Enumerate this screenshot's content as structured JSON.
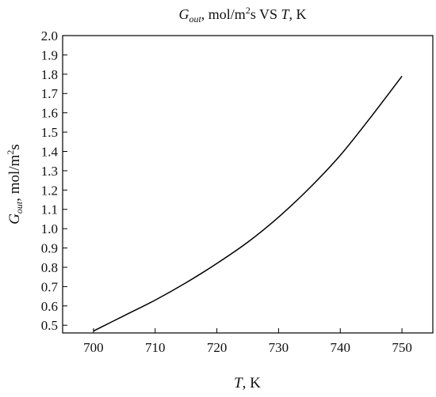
{
  "chart_data": {
    "type": "line",
    "title": {
      "symbol": "G",
      "subscript": "out",
      "mid": ", mol/m",
      "sup": "2",
      "rest": "s VS ",
      "tvar": "T",
      "tunit": ", K"
    },
    "xlabel": {
      "var": "T",
      "unit": ", K"
    },
    "ylabel": {
      "symbol": "G",
      "subscript": "out",
      "mid": ", mol/m",
      "sup": "2",
      "rest": "s"
    },
    "xlim": [
      695,
      755
    ],
    "ylim": [
      0.46,
      2.0
    ],
    "x_ticks": [
      700,
      710,
      720,
      730,
      740,
      750
    ],
    "y_ticks": [
      0.5,
      0.6,
      0.7,
      0.8,
      0.9,
      1.0,
      1.1,
      1.2,
      1.3,
      1.4,
      1.5,
      1.6,
      1.7,
      1.8,
      1.9,
      2.0
    ],
    "y_tick_labels": [
      "0.5",
      "0.6",
      "0.7",
      "0.8",
      "0.9",
      "1.0",
      "1.1",
      "1.2",
      "1.3",
      "1.4",
      "1.5",
      "1.6",
      "1.7",
      "1.8",
      "1.9",
      "2.0"
    ],
    "grid": false,
    "legend": "none",
    "line_color": "#000000",
    "series": [
      {
        "x": [
          700,
          705,
          710,
          715,
          720,
          725,
          730,
          735,
          740,
          745,
          750
        ],
        "y": [
          0.47,
          0.55,
          0.63,
          0.72,
          0.82,
          0.93,
          1.06,
          1.21,
          1.38,
          1.58,
          1.79
        ]
      }
    ]
  }
}
